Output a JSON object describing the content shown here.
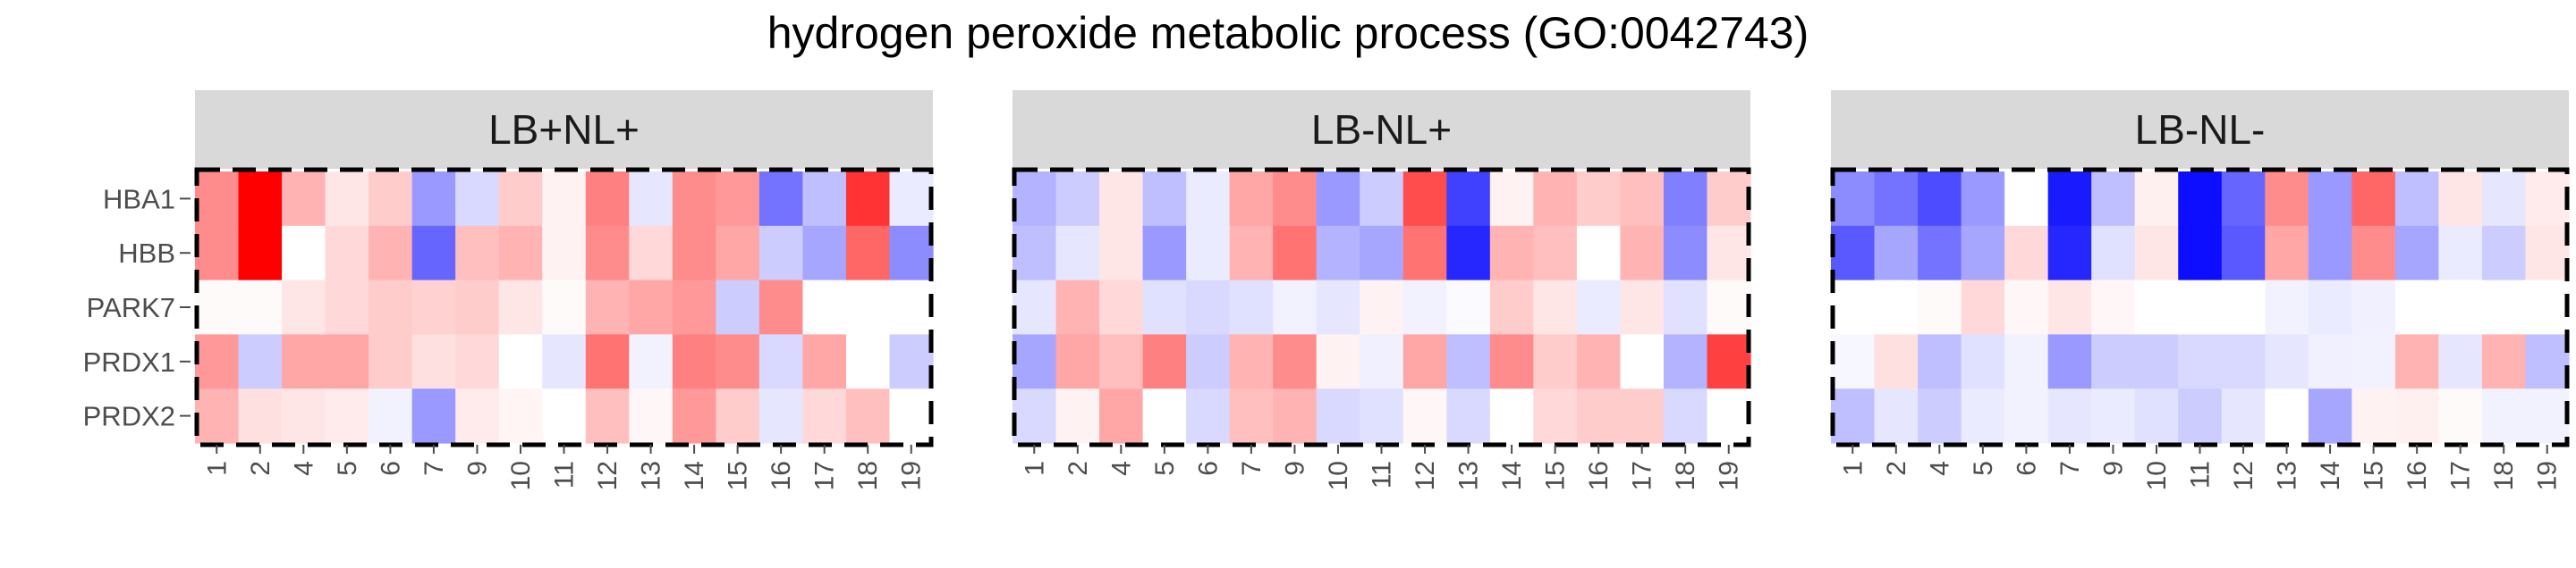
{
  "chart_data": {
    "type": "heatmap",
    "title": "hydrogen peroxide metabolic process (GO:0042743)",
    "genes": [
      "HBA1",
      "HBB",
      "PARK7",
      "PRDX1",
      "PRDX2"
    ],
    "color_scale": {
      "low": "#0000FF",
      "mid": "#FFFFFF",
      "high": "#FF0000",
      "min": -1,
      "max": 1
    },
    "panels": [
      {
        "name": "LB+NL+",
        "columns": [
          "1",
          "2",
          "4",
          "5",
          "6",
          "7",
          "9",
          "10",
          "11",
          "12",
          "13",
          "14",
          "15",
          "16",
          "17",
          "18",
          "19"
        ],
        "values": [
          [
            0.45,
            1.0,
            0.3,
            0.1,
            0.2,
            -0.4,
            -0.15,
            0.2,
            0.05,
            0.5,
            -0.1,
            0.45,
            0.4,
            -0.55,
            -0.25,
            0.8,
            -0.08
          ],
          [
            0.45,
            1.0,
            0.0,
            0.15,
            0.3,
            -0.6,
            0.25,
            0.3,
            0.05,
            0.45,
            0.15,
            0.45,
            0.35,
            -0.2,
            -0.35,
            0.6,
            -0.45
          ],
          [
            0.02,
            0.02,
            0.1,
            0.15,
            0.2,
            0.18,
            0.2,
            0.1,
            0.02,
            0.3,
            0.35,
            0.4,
            -0.2,
            0.45,
            0.0,
            0.0,
            0.0
          ],
          [
            0.4,
            -0.2,
            0.35,
            0.35,
            0.2,
            0.12,
            0.15,
            0.0,
            -0.1,
            0.55,
            -0.05,
            0.5,
            0.45,
            -0.15,
            0.35,
            0.0,
            -0.2
          ],
          [
            0.3,
            0.12,
            0.1,
            0.08,
            -0.05,
            -0.4,
            0.08,
            0.04,
            0.0,
            0.25,
            0.03,
            0.4,
            0.2,
            -0.1,
            0.15,
            0.25,
            0.0
          ]
        ]
      },
      {
        "name": "LB-NL+",
        "columns": [
          "1",
          "2",
          "4",
          "5",
          "6",
          "7",
          "9",
          "10",
          "11",
          "12",
          "13",
          "14",
          "15",
          "16",
          "17",
          "18",
          "19"
        ],
        "values": [
          [
            -0.3,
            -0.2,
            0.1,
            -0.25,
            -0.08,
            0.35,
            0.45,
            -0.4,
            -0.2,
            0.7,
            -0.75,
            0.05,
            0.3,
            0.2,
            0.25,
            -0.5,
            0.2
          ],
          [
            -0.25,
            -0.1,
            0.1,
            -0.4,
            -0.08,
            0.3,
            0.55,
            -0.3,
            -0.35,
            0.55,
            -0.85,
            0.3,
            0.25,
            0.0,
            0.3,
            -0.45,
            0.1
          ],
          [
            -0.1,
            0.3,
            0.15,
            -0.12,
            -0.15,
            -0.12,
            -0.05,
            -0.1,
            0.05,
            -0.05,
            -0.02,
            0.2,
            0.1,
            -0.08,
            0.1,
            -0.12,
            0.02
          ],
          [
            -0.35,
            0.35,
            0.25,
            0.5,
            -0.2,
            0.3,
            0.45,
            0.05,
            -0.06,
            0.35,
            -0.25,
            0.45,
            0.2,
            0.3,
            0.0,
            -0.3,
            0.75
          ],
          [
            -0.15,
            0.05,
            0.35,
            0.0,
            -0.15,
            0.25,
            0.3,
            -0.15,
            -0.12,
            0.03,
            -0.15,
            0.0,
            0.15,
            0.2,
            0.2,
            -0.15,
            0.0
          ]
        ]
      },
      {
        "name": "LB-NL-",
        "columns": [
          "1",
          "2",
          "4",
          "5",
          "6",
          "7",
          "9",
          "10",
          "11",
          "12",
          "13",
          "14",
          "15",
          "16",
          "17",
          "18",
          "19"
        ],
        "values": [
          [
            -0.45,
            -0.55,
            -0.7,
            -0.4,
            0.0,
            -0.9,
            -0.25,
            0.06,
            -0.95,
            -0.6,
            0.45,
            -0.4,
            0.6,
            -0.25,
            0.1,
            -0.1,
            0.08
          ],
          [
            -0.65,
            -0.35,
            -0.55,
            -0.35,
            0.15,
            -0.85,
            -0.12,
            0.1,
            -0.95,
            -0.65,
            0.35,
            -0.4,
            0.45,
            -0.35,
            -0.08,
            -0.2,
            0.1
          ],
          [
            0.0,
            0.0,
            0.02,
            0.15,
            0.03,
            0.1,
            0.03,
            0.0,
            0.0,
            0.0,
            -0.05,
            -0.08,
            -0.06,
            0.0,
            0.0,
            0.0,
            0.0
          ],
          [
            -0.03,
            0.12,
            -0.25,
            -0.12,
            -0.05,
            -0.4,
            -0.2,
            -0.2,
            -0.15,
            -0.15,
            -0.1,
            -0.06,
            -0.05,
            0.3,
            -0.1,
            0.3,
            -0.25
          ],
          [
            -0.25,
            -0.1,
            -0.2,
            -0.08,
            -0.05,
            -0.1,
            -0.08,
            -0.12,
            -0.2,
            -0.1,
            0.0,
            -0.35,
            0.05,
            0.06,
            0.02,
            -0.05,
            -0.05
          ]
        ]
      }
    ]
  }
}
